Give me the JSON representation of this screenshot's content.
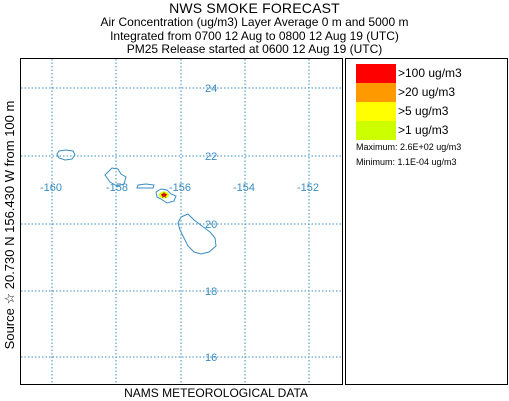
{
  "titles": {
    "line1": "NWS SMOKE FORECAST",
    "line2": "Air Concentration (ug/m3) Layer Average    0 m and  5000 m",
    "line3": "Integrated from 0700 12 Aug to 0800 12 Aug 19 (UTC)",
    "line4": "PM25 Release started at 0600 12 Aug 19 (UTC)"
  },
  "side_label": "Source ☆  20.730  N 156.430  W        from   100 m",
  "footer": "NAMS METEOROLOGICAL DATA",
  "map": {
    "lon_labels": [
      "-160",
      "-158",
      "-156",
      "-154",
      "-152"
    ],
    "lat_labels": [
      "24",
      "22",
      "20",
      "18",
      "16"
    ],
    "grid_color": "#3a8dbf",
    "coast_color": "#3a8dbf"
  },
  "legend": {
    "items": [
      {
        "label": ">100 ug/m3",
        "color": "#ff0000"
      },
      {
        "label": ">20 ug/m3",
        "color": "#ff9900"
      },
      {
        "label": ">5 ug/m3",
        "color": "#ffff00"
      },
      {
        "label": ">1 ug/m3",
        "color": "#ccff00"
      }
    ],
    "maximum": "Maximum: 2.6E+02 ug/m3",
    "minimum": "Minimum: 1.1E-04 ug/m3"
  }
}
